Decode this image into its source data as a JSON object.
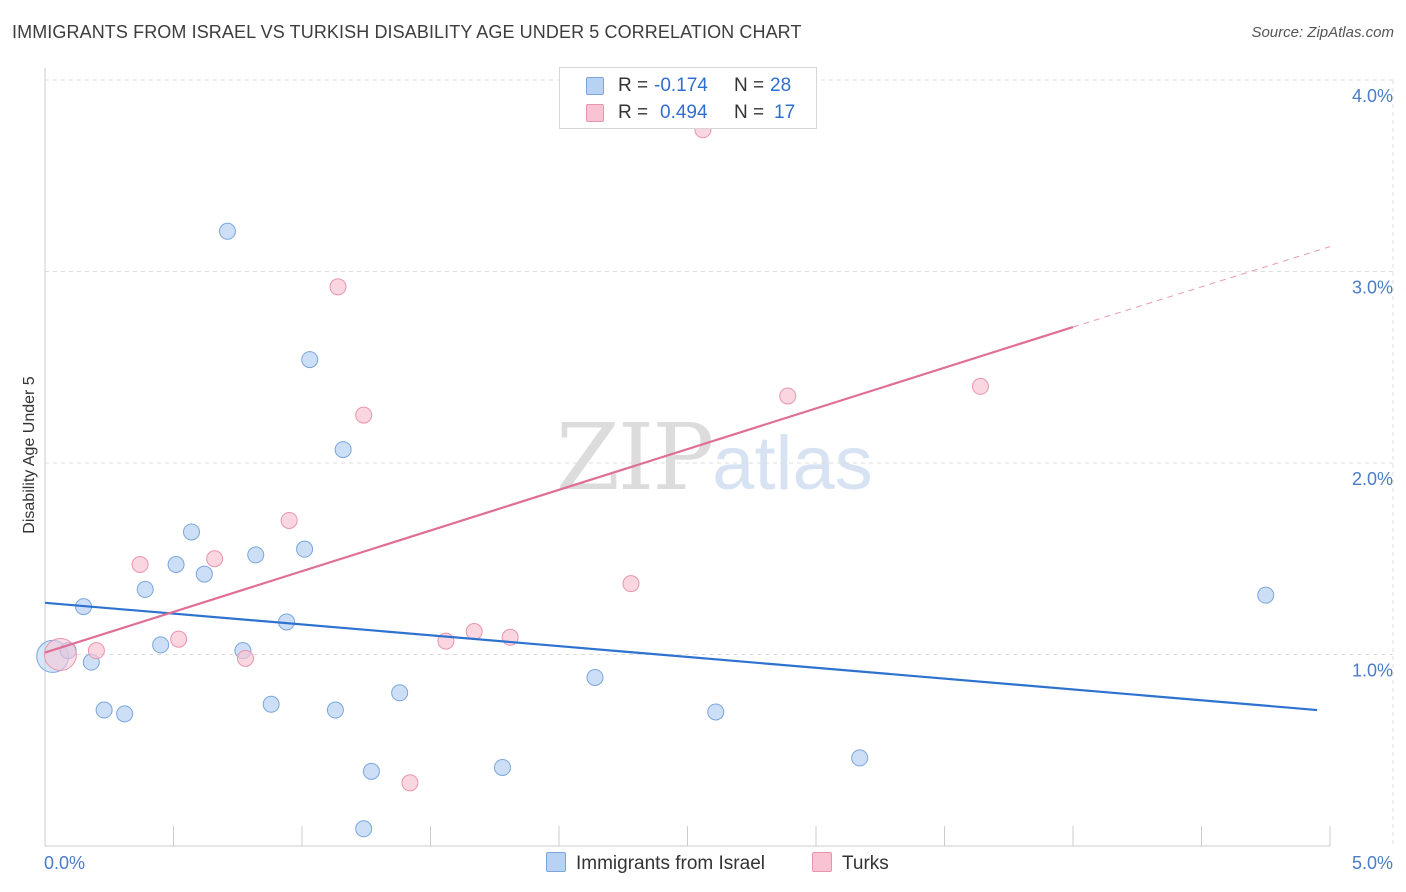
{
  "header": {
    "title": "IMMIGRANTS FROM ISRAEL VS TURKISH DISABILITY AGE UNDER 5 CORRELATION CHART",
    "source": "Source: ZipAtlas.com"
  },
  "watermark": {
    "zip": "ZIP",
    "atlas": "atlas"
  },
  "legend": {
    "rows": [
      {
        "r_label": "R =",
        "r_value": "-0.174",
        "n_label": "N =",
        "n_value": "28"
      },
      {
        "r_label": "R =",
        "r_value": "0.494",
        "n_label": "N =",
        "n_value": "17"
      }
    ]
  },
  "bottom_legend": {
    "series1": "Immigrants from Israel",
    "series2": "Turks"
  },
  "colors": {
    "series1_fill": "#b8d2f4",
    "series1_stroke": "#7aa6dd",
    "series1_line": "#2e72cf",
    "series2_fill": "#f8c4d3",
    "series2_stroke": "#e895ae",
    "series2_line": "#e06f97",
    "grid": "#dddddd",
    "tick_label": "#4a7cc7"
  },
  "chart_data": {
    "type": "scatter",
    "title": "IMMIGRANTS FROM ISRAEL VS TURKISH DISABILITY AGE UNDER 5 CORRELATION CHART",
    "xlabel": "",
    "ylabel": "Disability Age Under 5",
    "xlim": [
      0,
      5.0
    ],
    "ylim": [
      0,
      4.0
    ],
    "x_ticks": [
      "0.0%",
      "5.0%"
    ],
    "y_ticks": [
      {
        "value": 1.0,
        "label": "1.0%"
      },
      {
        "value": 2.0,
        "label": "2.0%"
      },
      {
        "value": 3.0,
        "label": "3.0%"
      },
      {
        "value": 4.0,
        "label": "4.0%"
      }
    ],
    "series": [
      {
        "name": "Immigrants from Israel",
        "R": -0.174,
        "N": 28,
        "points": [
          {
            "x": 0.03,
            "y": 0.99,
            "big": true
          },
          {
            "x": 0.09,
            "y": 1.02
          },
          {
            "x": 0.15,
            "y": 1.25
          },
          {
            "x": 0.18,
            "y": 0.96
          },
          {
            "x": 0.23,
            "y": 0.71
          },
          {
            "x": 0.31,
            "y": 0.69
          },
          {
            "x": 0.39,
            "y": 1.34
          },
          {
            "x": 0.45,
            "y": 1.05
          },
          {
            "x": 0.51,
            "y": 1.47
          },
          {
            "x": 0.57,
            "y": 1.64
          },
          {
            "x": 0.62,
            "y": 1.42
          },
          {
            "x": 0.71,
            "y": 3.21
          },
          {
            "x": 0.77,
            "y": 1.02
          },
          {
            "x": 0.82,
            "y": 1.52
          },
          {
            "x": 0.88,
            "y": 0.74
          },
          {
            "x": 0.94,
            "y": 1.17
          },
          {
            "x": 1.01,
            "y": 1.55
          },
          {
            "x": 1.03,
            "y": 2.54
          },
          {
            "x": 1.13,
            "y": 0.71
          },
          {
            "x": 1.16,
            "y": 2.07
          },
          {
            "x": 1.24,
            "y": 0.09
          },
          {
            "x": 1.27,
            "y": 0.39
          },
          {
            "x": 1.38,
            "y": 0.8
          },
          {
            "x": 1.78,
            "y": 0.41
          },
          {
            "x": 2.14,
            "y": 0.88
          },
          {
            "x": 2.61,
            "y": 0.7
          },
          {
            "x": 3.17,
            "y": 0.46
          },
          {
            "x": 4.75,
            "y": 1.31
          }
        ],
        "trend": {
          "x0": 0.0,
          "y0": 1.27,
          "x1": 4.95,
          "y1": 0.71
        }
      },
      {
        "name": "Turks",
        "R": 0.494,
        "N": 17,
        "points": [
          {
            "x": 0.06,
            "y": 1.0,
            "big": true
          },
          {
            "x": 0.2,
            "y": 1.02
          },
          {
            "x": 0.37,
            "y": 1.47
          },
          {
            "x": 0.52,
            "y": 1.08
          },
          {
            "x": 0.66,
            "y": 1.5
          },
          {
            "x": 0.78,
            "y": 0.98
          },
          {
            "x": 0.95,
            "y": 1.7
          },
          {
            "x": 1.14,
            "y": 2.92
          },
          {
            "x": 1.24,
            "y": 2.25
          },
          {
            "x": 1.42,
            "y": 0.33
          },
          {
            "x": 1.56,
            "y": 1.07
          },
          {
            "x": 1.67,
            "y": 1.12
          },
          {
            "x": 1.81,
            "y": 1.09
          },
          {
            "x": 2.28,
            "y": 1.37
          },
          {
            "x": 2.56,
            "y": 3.74
          },
          {
            "x": 2.89,
            "y": 2.35
          },
          {
            "x": 3.64,
            "y": 2.4
          }
        ],
        "trend": {
          "x0": 0.0,
          "y0": 1.01,
          "x1": 4.0,
          "y1": 2.71
        },
        "trend_extension": {
          "x0": 4.0,
          "y0": 2.71,
          "x1": 5.0,
          "y1": 3.13
        }
      }
    ]
  }
}
